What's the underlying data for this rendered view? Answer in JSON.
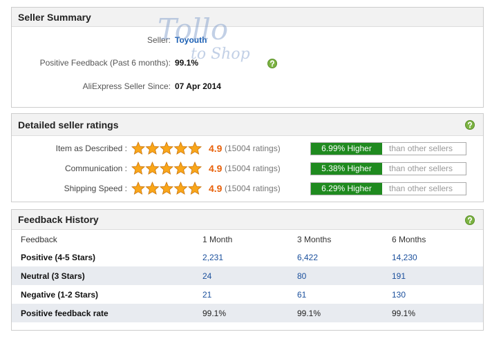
{
  "watermark": [
    "Tollo",
    "to Shop"
  ],
  "seller_summary": {
    "title": "Seller Summary",
    "rows": [
      {
        "label": "Seller:",
        "value": "Toyouth"
      },
      {
        "label": "Positive Feedback (Past 6 months):",
        "value": "99.1%"
      },
      {
        "label": "AliExpress Seller Since:",
        "value": "07 Apr 2014"
      }
    ]
  },
  "detailed_ratings": {
    "title": "Detailed seller ratings",
    "rows": [
      {
        "label": "Item as Described :",
        "score": "4.9",
        "ratings": "(15004 ratings)",
        "comparison": "6.99% Higher",
        "comparison_note": "than other sellers"
      },
      {
        "label": "Communication :",
        "score": "4.9",
        "ratings": "(15004 ratings)",
        "comparison": "5.38% Higher",
        "comparison_note": "than other sellers"
      },
      {
        "label": "Shipping Speed :",
        "score": "4.9",
        "ratings": "(15004 ratings)",
        "comparison": "6.29% Higher",
        "comparison_note": "than other sellers"
      }
    ]
  },
  "feedback_history": {
    "title": "Feedback History",
    "header": [
      "Feedback",
      "1 Month",
      "3 Months",
      "6 Months"
    ],
    "rows": [
      [
        "Positive (4-5 Stars)",
        "2,231",
        "6,422",
        "14,230"
      ],
      [
        "Neutral (3 Stars)",
        "24",
        "80",
        "191"
      ],
      [
        "Negative (1-2 Stars)",
        "21",
        "61",
        "130"
      ],
      [
        "Positive feedback rate",
        "99.1%",
        "99.1%",
        "99.1%"
      ]
    ]
  }
}
